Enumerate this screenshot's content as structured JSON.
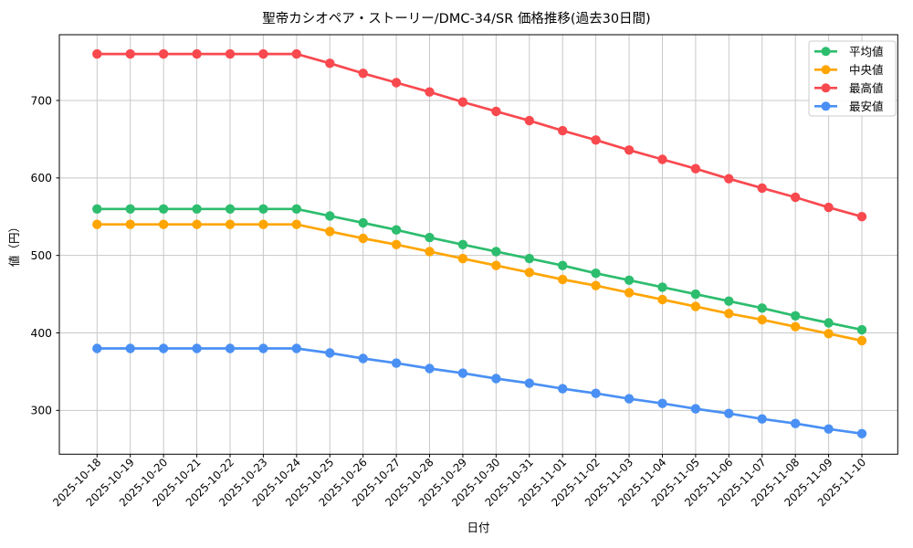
{
  "window": {
    "background": "#ffffff"
  },
  "chart_data": {
    "type": "line",
    "title": "聖帝カシオペア・ストーリー/DMC-34/SR 価格推移(過去30日間)",
    "xlabel": "日付",
    "ylabel": "値（円）",
    "x": [
      "2025-10-18",
      "2025-10-19",
      "2025-10-20",
      "2025-10-21",
      "2025-10-22",
      "2025-10-23",
      "2025-10-24",
      "2025-10-25",
      "2025-10-26",
      "2025-10-27",
      "2025-10-28",
      "2025-10-29",
      "2025-10-30",
      "2025-10-31",
      "2025-11-01",
      "2025-11-02",
      "2025-11-03",
      "2025-11-04",
      "2025-11-05",
      "2025-11-06",
      "2025-11-07",
      "2025-11-08",
      "2025-11-09",
      "2025-11-10"
    ],
    "yticks": [
      300,
      400,
      500,
      600,
      700
    ],
    "ylim": [
      243,
      785
    ],
    "grid": true,
    "legend_position": "upper-right",
    "series": [
      {
        "name": "平均値",
        "color": "#2dbd6e",
        "values": [
          560,
          560,
          560,
          560,
          560,
          560,
          560,
          551,
          542,
          533,
          523,
          514,
          505,
          496,
          487,
          477,
          468,
          459,
          450,
          441,
          432,
          422,
          413,
          404
        ]
      },
      {
        "name": "中央値",
        "color": "#ffa502",
        "values": [
          540,
          540,
          540,
          540,
          540,
          540,
          540,
          531,
          522,
          514,
          505,
          496,
          487,
          478,
          469,
          461,
          452,
          443,
          434,
          425,
          417,
          408,
          399,
          390
        ]
      },
      {
        "name": "最高値",
        "color": "#f8494f",
        "values": [
          760,
          760,
          760,
          760,
          760,
          760,
          760,
          748,
          735,
          723,
          711,
          698,
          686,
          674,
          661,
          649,
          636,
          624,
          612,
          599,
          587,
          575,
          562,
          550
        ]
      },
      {
        "name": "最安値",
        "color": "#4a90f4",
        "values": [
          380,
          380,
          380,
          380,
          380,
          380,
          380,
          374,
          367,
          361,
          354,
          348,
          341,
          335,
          328,
          322,
          315,
          309,
          302,
          296,
          289,
          283,
          276,
          270
        ]
      }
    ],
    "colors": {
      "grid": "#c8c8c8",
      "axis": "#000000",
      "text": "#000000",
      "legend_border": "#cccccc",
      "legend_bg": "#ffffff"
    }
  }
}
